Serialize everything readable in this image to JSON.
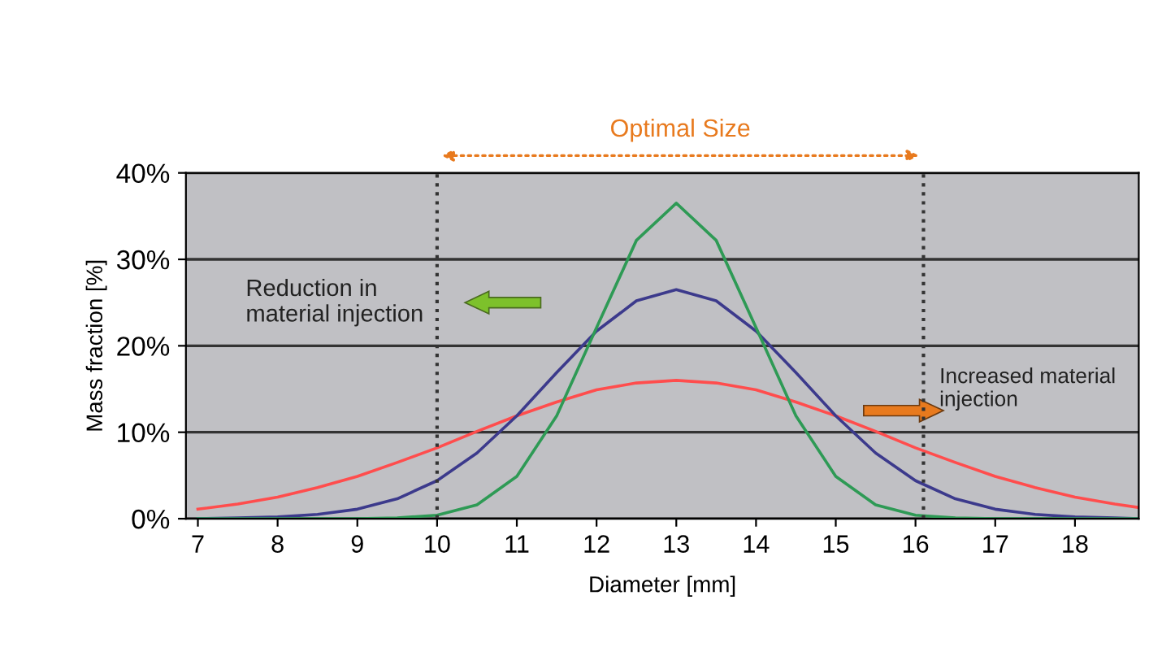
{
  "chart_data": {
    "type": "line",
    "xlabel": "Diameter [mm]",
    "ylabel": "Mass fraction [%]",
    "x": [
      7,
      7.5,
      8,
      8.5,
      9,
      9.5,
      10,
      10.5,
      11,
      11.5,
      12,
      12.5,
      13,
      13.5,
      14,
      14.5,
      15,
      15.5,
      16,
      16.5,
      17,
      17.5,
      18,
      18.5,
      18.8
    ],
    "series": [
      {
        "color": "#ff4d4d",
        "values": [
          1.1,
          1.7,
          2.5,
          3.6,
          4.9,
          6.5,
          8.2,
          10.1,
          11.9,
          13.5,
          14.9,
          15.7,
          16,
          15.7,
          14.9,
          13.5,
          11.9,
          10.1,
          8.2,
          6.5,
          4.9,
          3.6,
          2.5,
          1.7,
          1.3
        ]
      },
      {
        "color": "#3c3a8c",
        "values": [
          0,
          0.1,
          0.2,
          0.5,
          1.1,
          2.3,
          4.4,
          7.6,
          11.9,
          16.9,
          21.7,
          25.2,
          26.5,
          25.2,
          21.7,
          16.9,
          11.9,
          7.6,
          4.4,
          2.3,
          1.1,
          0.5,
          0.2,
          0.1,
          0
        ]
      },
      {
        "color": "#2e9a55",
        "values": [
          0,
          0,
          0,
          0,
          0,
          0.1,
          0.4,
          1.6,
          4.9,
          11.9,
          22.1,
          32.2,
          36.5,
          32.2,
          22.1,
          11.9,
          4.9,
          1.6,
          0.4,
          0.1,
          0,
          0,
          0,
          0,
          0
        ]
      }
    ],
    "xlim": [
      6.85,
      18.8
    ],
    "xticks": [
      7,
      8,
      9,
      10,
      11,
      12,
      13,
      14,
      15,
      16,
      17,
      18
    ],
    "ylim": [
      0,
      40
    ],
    "yticks": [
      {
        "value": 0,
        "label": "0%"
      },
      {
        "value": 10,
        "label": "10%"
      },
      {
        "value": 20,
        "label": "20%"
      },
      {
        "value": 30,
        "label": "30%"
      },
      {
        "value": 40,
        "label": "40%"
      }
    ],
    "grid": "y",
    "ref_lines": [
      {
        "axis": "x",
        "value": 10,
        "line_style": "dotted",
        "color": "#333333"
      },
      {
        "axis": "x",
        "value": 16.1,
        "line_style": "dotted",
        "color": "#333333"
      }
    ],
    "annotations": [
      "Optimal Size",
      "Reduction in\nmaterial injection",
      "Increased material\ninjection"
    ]
  }
}
